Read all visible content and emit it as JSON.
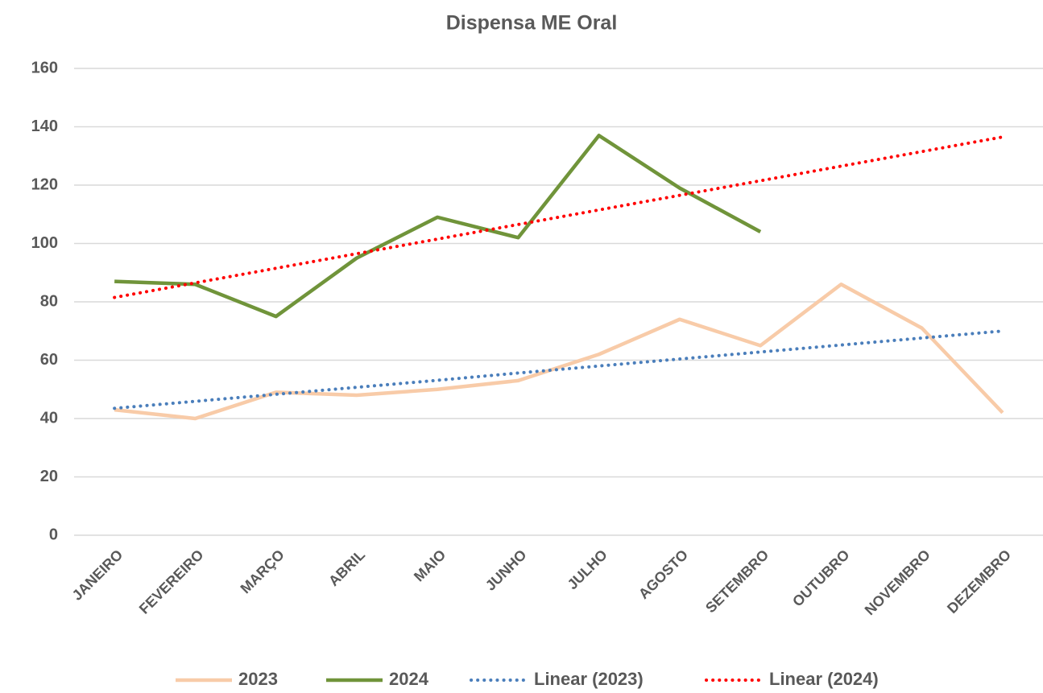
{
  "chart_data": {
    "type": "line",
    "title": "Dispensa ME Oral",
    "categories": [
      "JANEIRO",
      "FEVEREIRO",
      "MARÇO",
      "ABRIL",
      "MAIO",
      "JUNHO",
      "JULHO",
      "AGOSTO",
      "SETEMBRO",
      "OUTUBRO",
      "NOVEMBRO",
      "DEZEMBRO"
    ],
    "series": [
      {
        "name": "2023",
        "color": "#f8cba8",
        "dash": "solid",
        "values": [
          43,
          40,
          49,
          48,
          50,
          53,
          62,
          74,
          65,
          86,
          71,
          42
        ]
      },
      {
        "name": "2024",
        "color": "#70943a",
        "dash": "solid",
        "values": [
          87,
          86,
          75,
          95,
          109,
          102,
          137,
          119,
          104,
          null,
          null,
          null
        ]
      },
      {
        "name": "Linear (2023)",
        "color": "#4a7ebb",
        "dash": "dotted",
        "values": [
          43.5,
          45.9,
          48.3,
          50.7,
          53.1,
          55.6,
          58.0,
          60.4,
          62.8,
          65.2,
          67.6,
          70.0
        ]
      },
      {
        "name": "Linear (2024)",
        "color": "#ff0000",
        "dash": "dotted",
        "values": [
          81.5,
          86.5,
          91.5,
          96.5,
          101.5,
          106.5,
          111.5,
          116.5,
          121.5,
          126.5,
          131.5,
          136.5
        ]
      }
    ],
    "ylim": [
      0,
      160
    ],
    "yticks": [
      0,
      20,
      40,
      60,
      80,
      100,
      120,
      140,
      160
    ],
    "grid": true,
    "legend": "bottom"
  }
}
